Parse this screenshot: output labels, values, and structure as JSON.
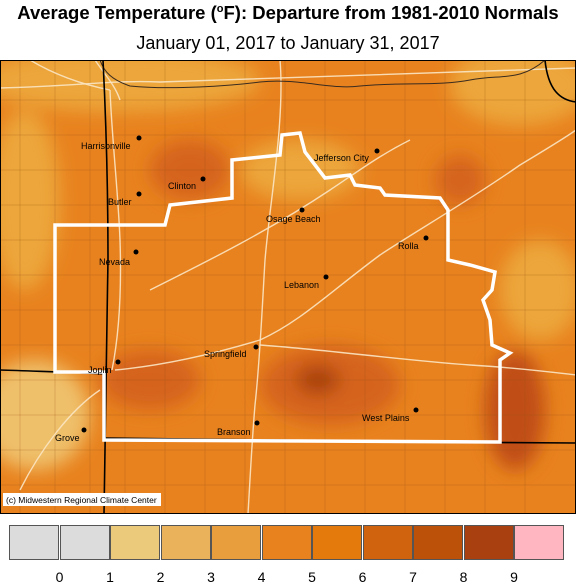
{
  "title": {
    "main": "Average Temperature (",
    "sup": "o",
    "rest": "F): Departure from 1981-2010 Normals"
  },
  "subtitle": "January 01, 2017 to January 31, 2017",
  "credit": "(c) Midwestern Regional Climate Center",
  "colors": {
    "base": "#e8821e",
    "light": "#eca63a",
    "lighter": "#efc06a",
    "dark": "#d5641a",
    "darker": "#c04d16",
    "darkest": "#a8400f",
    "road": "#fbe6c4",
    "border": "#ffffff",
    "state_line": "#000000"
  },
  "cities": [
    {
      "name": "Harrisonville"
    },
    {
      "name": "Clinton"
    },
    {
      "name": "Butler"
    },
    {
      "name": "Jefferson City"
    },
    {
      "name": "Osage Beach"
    },
    {
      "name": "Rolla"
    },
    {
      "name": "Nevada"
    },
    {
      "name": "Lebanon"
    },
    {
      "name": "Joplin"
    },
    {
      "name": "Springfield"
    },
    {
      "name": "Branson"
    },
    {
      "name": "West Plains"
    },
    {
      "name": "Grove"
    }
  ],
  "legend": {
    "colors": [
      "#dcdcdc",
      "#dcdcdc",
      "#ecca7c",
      "#eab25a",
      "#e89e3c",
      "#e8821e",
      "#e57a0c",
      "#d0640e",
      "#bc520a",
      "#a8400f",
      "#ffb6c1"
    ],
    "ticks": [
      "0",
      "1",
      "2",
      "3",
      "4",
      "5",
      "6",
      "7",
      "8",
      "9"
    ]
  }
}
